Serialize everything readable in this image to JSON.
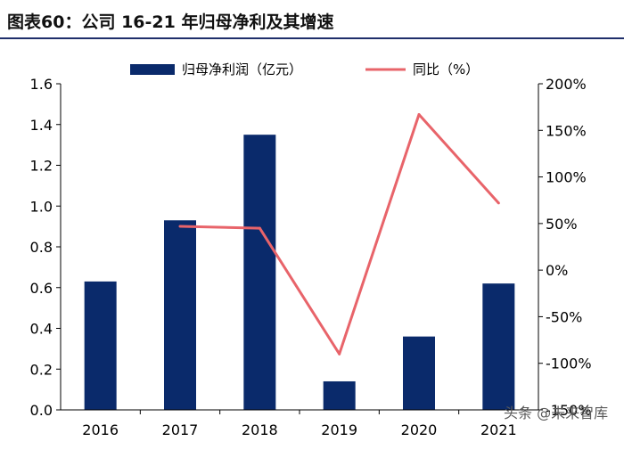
{
  "figure": {
    "label": "图表60：",
    "title": "公司 16-21 年归母净利及其增速"
  },
  "watermark": "头条 @未来智库",
  "colors": {
    "bar": "#0a2a6b",
    "line": "#e8646a",
    "axis": "#000000"
  },
  "chart_data": {
    "type": "bar",
    "categories": [
      "2016",
      "2017",
      "2018",
      "2019",
      "2020",
      "2021"
    ],
    "series": [
      {
        "name": "归母净利润（亿元）",
        "type": "bar",
        "axis": "left",
        "values": [
          0.63,
          0.93,
          1.35,
          0.14,
          0.36,
          0.62
        ]
      },
      {
        "name": "同比（%）",
        "type": "line",
        "axis": "right",
        "values": [
          null,
          47,
          45,
          -90,
          167,
          72
        ]
      }
    ],
    "y_left": {
      "min": 0,
      "max": 1.6,
      "ticks": [
        "0.0",
        "0.2",
        "0.4",
        "0.6",
        "0.8",
        "1.0",
        "1.2",
        "1.4",
        "1.6"
      ]
    },
    "y_right": {
      "min": -150,
      "max": 200,
      "ticks": [
        "-150%",
        "-100%",
        "-50%",
        "0%",
        "50%",
        "100%",
        "150%",
        "200%"
      ]
    },
    "legend": "top",
    "grid": false
  }
}
